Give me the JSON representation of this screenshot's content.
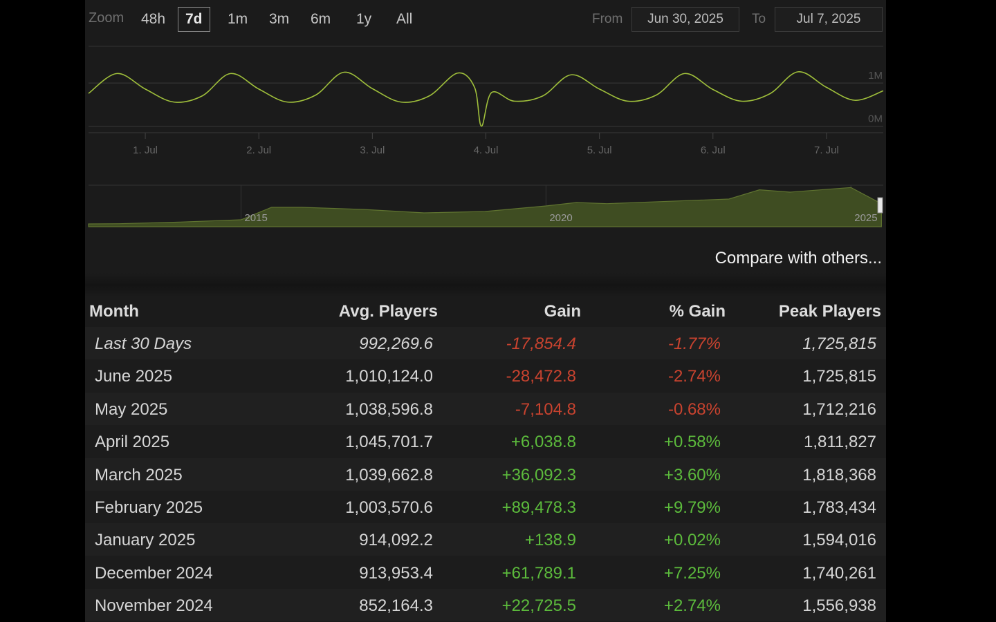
{
  "zoom": {
    "label": "Zoom",
    "options": [
      "48h",
      "7d",
      "1m",
      "3m",
      "6m",
      "1y",
      "All"
    ],
    "selected": 1
  },
  "range": {
    "from_label": "From",
    "from": "Jun 30, 2025",
    "to_label": "To",
    "to": "Jul 7, 2025"
  },
  "chart_data": [
    {
      "type": "line",
      "color": "#9fbf3b",
      "x": [
        0.5,
        0.75,
        1,
        1.25,
        1.5,
        1.75,
        2,
        2.25,
        2.5,
        2.75,
        3,
        3.25,
        3.5,
        3.75,
        3.9,
        3.96,
        4.05,
        4.25,
        4.5,
        4.75,
        5,
        5.25,
        5.5,
        5.75,
        6,
        6.25,
        6.5,
        6.75,
        7,
        7.25,
        7.5
      ],
      "values": [
        760000,
        1220000,
        860000,
        560000,
        700000,
        1220000,
        860000,
        560000,
        720000,
        1250000,
        870000,
        560000,
        700000,
        1230000,
        900000,
        0,
        780000,
        580000,
        700000,
        1190000,
        860000,
        580000,
        720000,
        1220000,
        850000,
        580000,
        750000,
        1260000,
        900000,
        600000,
        820000
      ],
      "xlim": [
        0.5,
        7.5
      ],
      "xticks": [
        {
          "value": 1,
          "label": "1. Jul"
        },
        {
          "value": 2,
          "label": "2. Jul"
        },
        {
          "value": 3,
          "label": "3. Jul"
        },
        {
          "value": 4,
          "label": "4. Jul"
        },
        {
          "value": 5,
          "label": "5. Jul"
        },
        {
          "value": 6,
          "label": "6. Jul"
        },
        {
          "value": 7,
          "label": "7. Jul"
        }
      ],
      "ylim": [
        -150000,
        1850000
      ],
      "yticks": [
        {
          "value": 0,
          "label": "0M"
        },
        {
          "value": 1000000,
          "label": "1M"
        }
      ],
      "grid": true
    },
    {
      "type": "area",
      "color": "#3f4d22",
      "line_color": "#5f7330",
      "x": [
        2012.5,
        2013,
        2014,
        2015,
        2015.5,
        2016,
        2017,
        2018,
        2019,
        2020,
        2020.5,
        2021,
        2022,
        2023,
        2023.5,
        2024,
        2025,
        2025.5
      ],
      "values": [
        120000,
        130000,
        200000,
        300000,
        840000,
        840000,
        750000,
        600000,
        660000,
        900000,
        1050000,
        1000000,
        1100000,
        1200000,
        1600000,
        1500000,
        1700000,
        1000000
      ],
      "xlim": [
        2012.5,
        2025.53
      ],
      "xticks": [
        2015,
        2020,
        2025
      ],
      "ylim": [
        0,
        1800000
      ]
    }
  ],
  "compare_link": "Compare with others...",
  "table": {
    "columns": [
      "Month",
      "Avg. Players",
      "Gain",
      "% Gain",
      "Peak Players"
    ],
    "rows": [
      [
        "Last 30 Days",
        "992,269.6",
        "-17,854.4",
        "-1.77%",
        "1,725,815"
      ],
      [
        "June 2025",
        "1,010,124.0",
        "-28,472.8",
        "-2.74%",
        "1,725,815"
      ],
      [
        "May 2025",
        "1,038,596.8",
        "-7,104.8",
        "-0.68%",
        "1,712,216"
      ],
      [
        "April 2025",
        "1,045,701.7",
        "+6,038.8",
        "+0.58%",
        "1,811,827"
      ],
      [
        "March 2025",
        "1,039,662.8",
        "+36,092.3",
        "+3.60%",
        "1,818,368"
      ],
      [
        "February 2025",
        "1,003,570.6",
        "+89,478.3",
        "+9.79%",
        "1,783,434"
      ],
      [
        "January 2025",
        "914,092.2",
        "+138.9",
        "+0.02%",
        "1,594,016"
      ],
      [
        "December 2024",
        "913,953.4",
        "+61,789.1",
        "+7.25%",
        "1,740,261"
      ],
      [
        "November 2024",
        "852,164.3",
        "+22,725.5",
        "+2.74%",
        "1,556,938"
      ]
    ]
  }
}
